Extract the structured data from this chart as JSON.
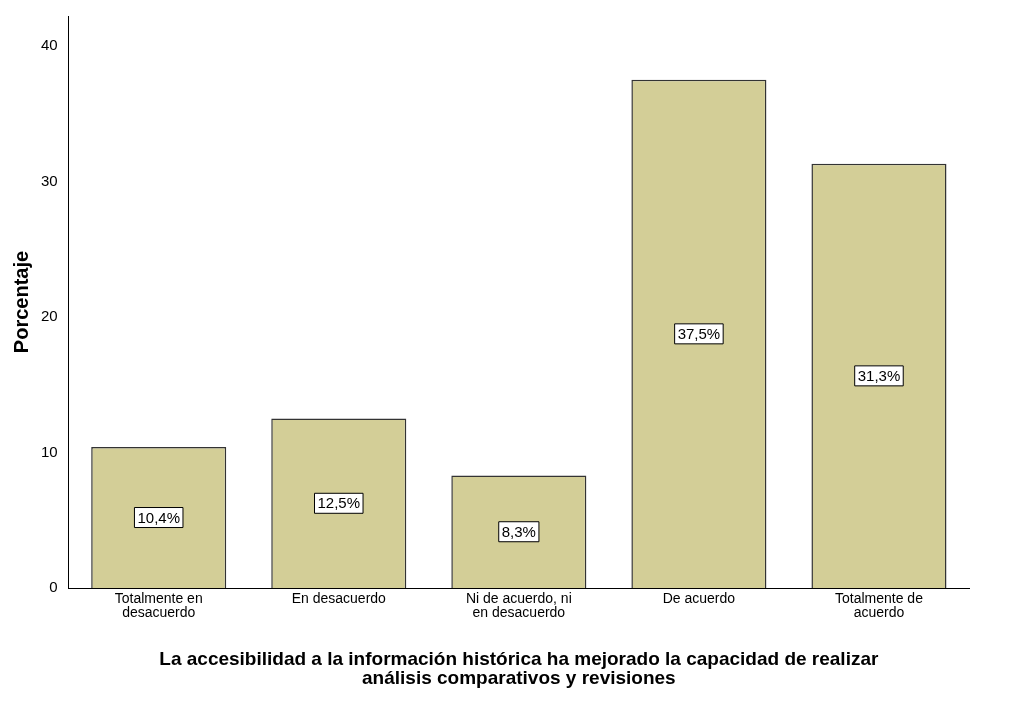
{
  "chart_data": {
    "type": "bar",
    "xlabel": "La accesibilidad a la información histórica ha mejorado la capacidad de realizar análisis comparativos y revisiones",
    "ylabel": "Porcentaje",
    "categories": [
      "Totalmente en desacuerdo",
      "En desacuerdo",
      "Ni de acuerdo, ni en desacuerdo",
      "De acuerdo",
      "Totalmente de acuerdo"
    ],
    "values": [
      10.4,
      12.5,
      8.3,
      37.5,
      31.3
    ],
    "value_labels": [
      "10,4%",
      "12,5%",
      "8,3%",
      "37,5%",
      "31,3%"
    ],
    "color": "#d3ce97",
    "ylim": [
      0,
      42.2
    ],
    "yticks": [
      0,
      10,
      20,
      30,
      40
    ],
    "grid": false,
    "legend": false
  }
}
